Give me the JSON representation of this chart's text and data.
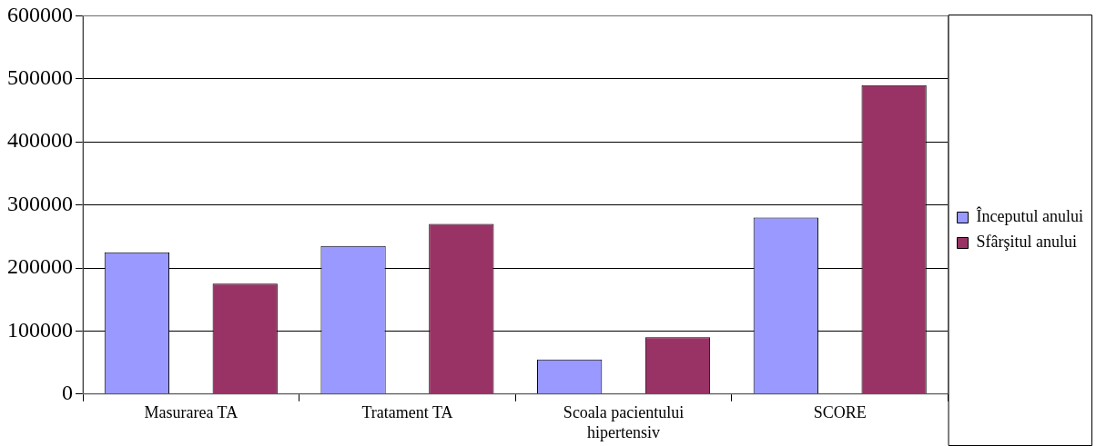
{
  "chart_data": {
    "type": "bar",
    "categories": [
      "Masurarea TA",
      "Tratament TA",
      "Scoala pacientului hipertensiv",
      "SCORE"
    ],
    "series": [
      {
        "name": "Începutul anului",
        "color": "#9999ff",
        "values": [
          225000,
          235000,
          55000,
          280000
        ]
      },
      {
        "name": "Sfârşitul anului",
        "color": "#993366",
        "values": [
          175000,
          270000,
          90000,
          490000
        ]
      }
    ],
    "ylim": [
      0,
      600000
    ],
    "yticks": [
      0,
      100000,
      200000,
      300000,
      400000,
      500000,
      600000
    ],
    "grid": "y",
    "legend": "right"
  }
}
